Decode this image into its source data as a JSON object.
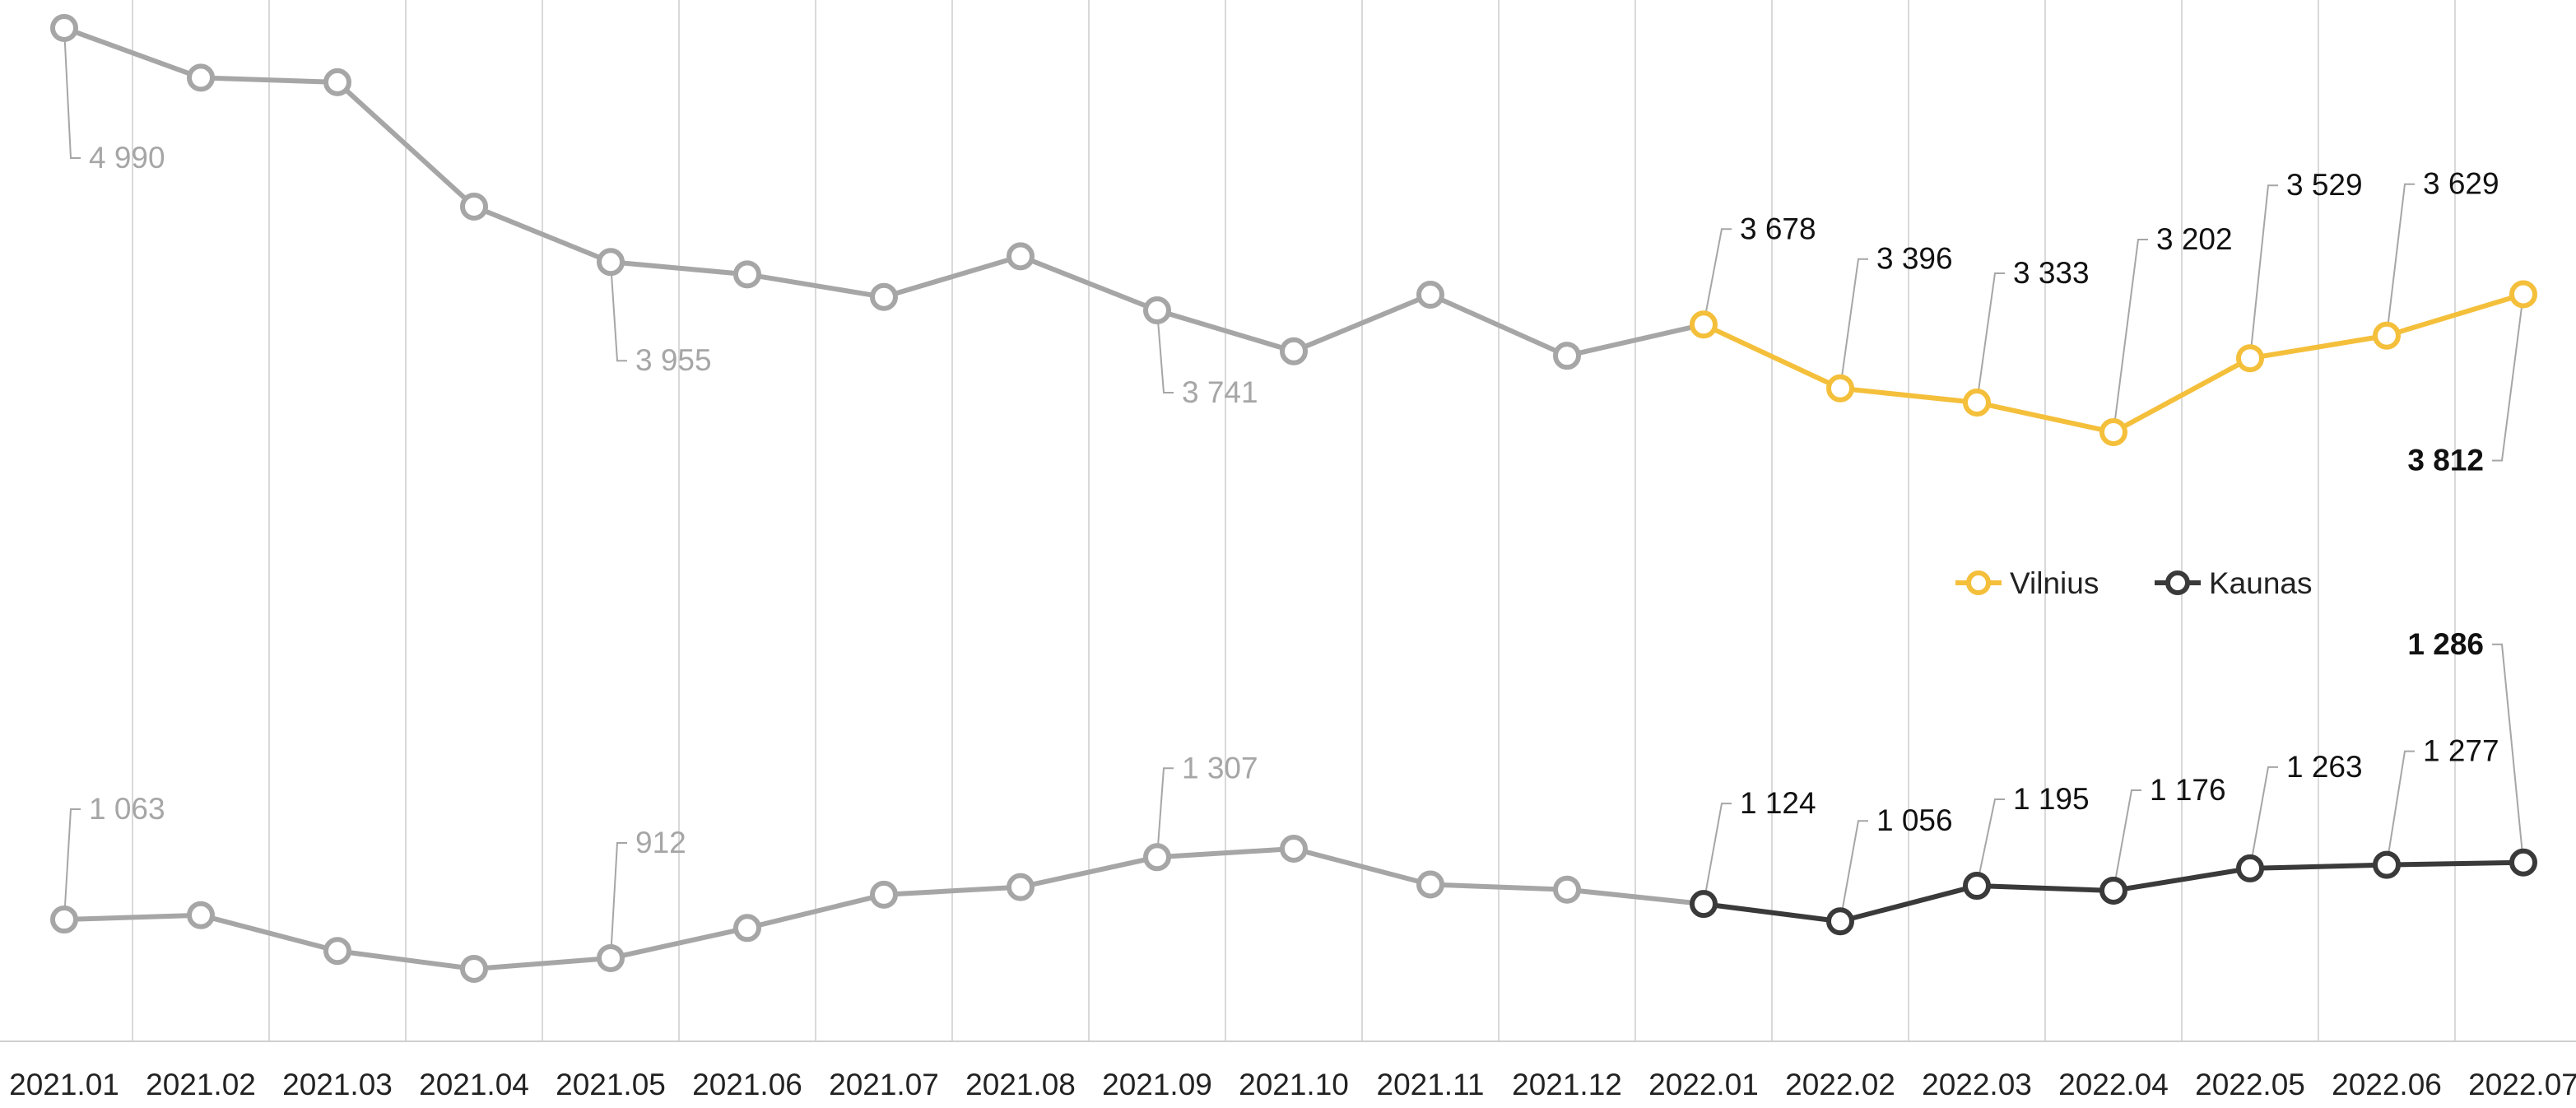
{
  "chart_data": {
    "type": "line",
    "categories": [
      "2021.01",
      "2021.02",
      "2021.03",
      "2021.04",
      "2021.05",
      "2021.06",
      "2021.07",
      "2021.08",
      "2021.09",
      "2021.10",
      "2021.11",
      "2021.12",
      "2022.01",
      "2022.02",
      "2022.03",
      "2022.04",
      "2022.05",
      "2022.06",
      "2022.07"
    ],
    "ylim": [
      0,
      5200
    ],
    "grid": "vertical",
    "legend_position": "right",
    "colors": {
      "history": "#a6a6a6",
      "vilnius": "#f4bf3a",
      "kaunas": "#3a3a3a",
      "grid": "#d9d9d9",
      "history_label": "#a6a6a6",
      "current_label": "#111111"
    },
    "series": [
      {
        "name": "Vilnius",
        "highlight_from_index": 12,
        "values": [
          4990,
          4770,
          4750,
          4200,
          3955,
          3900,
          3800,
          3980,
          3741,
          3560,
          3810,
          3540,
          3678,
          3396,
          3333,
          3202,
          3529,
          3629,
          3812
        ],
        "labels": [
          "4 990",
          "",
          "",
          "",
          "3 955",
          "",
          "",
          "",
          "3 741",
          "",
          "",
          "",
          "3 678",
          "3 396",
          "3 333",
          "3 202",
          "3 529",
          "3 629",
          "3 812"
        ]
      },
      {
        "name": "Kaunas",
        "highlight_from_index": 12,
        "values": [
          1063,
          1080,
          940,
          870,
          912,
          1030,
          1160,
          1190,
          1307,
          1340,
          1200,
          1180,
          1124,
          1056,
          1195,
          1176,
          1263,
          1277,
          1286
        ],
        "labels": [
          "1 063",
          "",
          "",
          "",
          "912",
          "",
          "",
          "",
          "1 307",
          "",
          "",
          "",
          "1 124",
          "1 056",
          "1 195",
          "1 176",
          "1 263",
          "1 277",
          "1 286"
        ]
      }
    ]
  }
}
